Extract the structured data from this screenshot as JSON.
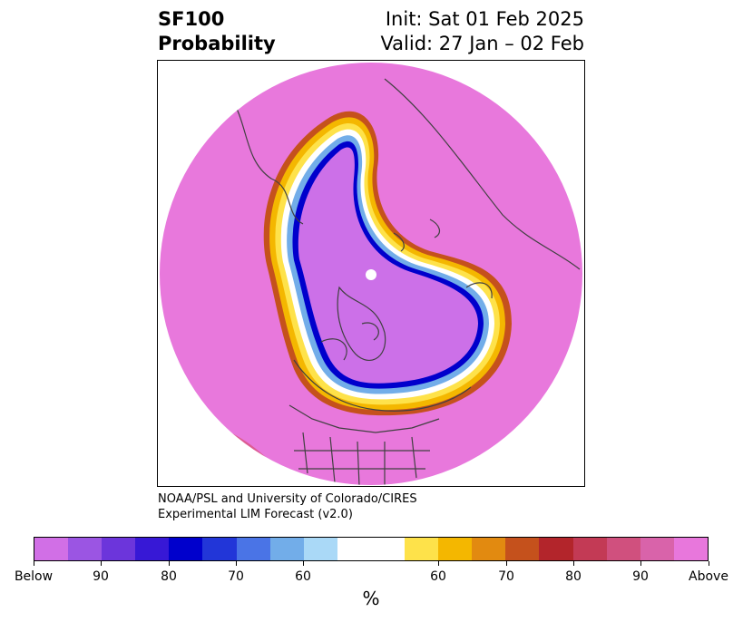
{
  "header": {
    "title_line1": "SF100",
    "title_line2": "Probability",
    "init_label": "Init: Sat 01 Feb 2025",
    "valid_label": "Valid: 27 Jan – 02 Feb"
  },
  "credit": {
    "line1": "NOAA/PSL and University of Colorado/CIRES",
    "line2": "Experimental LIM Forecast (v2.0)"
  },
  "map": {
    "projection": "north-polar-stereographic",
    "background_color": "#e878dc",
    "dominant_category": "Above",
    "region_colors": {
      "above_outer": "#e878dc",
      "below_inner": "#cc70e8",
      "ring_blue": "#1a1ad0",
      "ring_white": "#ffffff",
      "ring_yellow": "#f5b800",
      "ring_red": "#b02828",
      "coastline": "#404040"
    }
  },
  "colorbar": {
    "unit_label": "%",
    "colors": [
      "#d16fe6",
      "#9b55e3",
      "#6c35db",
      "#3718d6",
      "#0000cc",
      "#2236d8",
      "#4a74e6",
      "#72ade9",
      "#aad9f7",
      "#ffffff",
      "#ffffff",
      "#fee24a",
      "#f4b700",
      "#e28a10",
      "#c5511c",
      "#b3252b",
      "#c33a55",
      "#d0507e",
      "#d963aa",
      "#e877dc"
    ],
    "labels": [
      "Below",
      "90",
      "80",
      "70",
      "60",
      "60",
      "70",
      "80",
      "90",
      "Above"
    ]
  }
}
